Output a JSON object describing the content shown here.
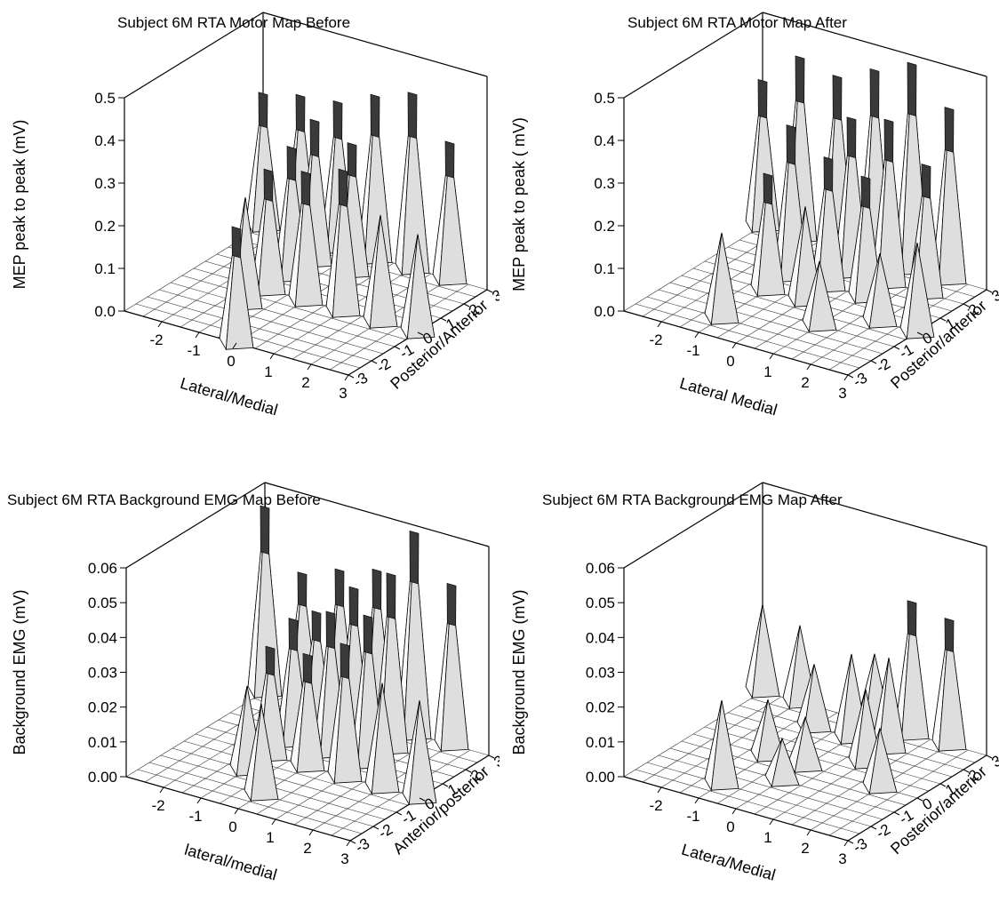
{
  "chart_data": [
    {
      "type": "surface3d",
      "title": "Subject  6M RTA Motor Map Before",
      "xlabel": "Lateral/Medial",
      "ylabel": "Posterior/Anterior",
      "zlabel": "MEP peak to peak (mV)",
      "x_ticks": [
        "-2",
        "-1",
        "0",
        "1",
        "2",
        "3"
      ],
      "y_ticks": [
        "-3",
        "-2",
        "-1",
        "0",
        "1",
        "2",
        "3"
      ],
      "z_ticks": [
        "0.0",
        "0.1",
        "0.2",
        "0.3",
        "0.4",
        "0.5"
      ],
      "zlim": [
        0,
        0.5
      ],
      "grid": "-3 to 3 on both horizontal axes",
      "peaks": [
        {
          "x": -3,
          "y": 3,
          "z": 0.31
        },
        {
          "x": -2,
          "y": 3,
          "z": 0.33
        },
        {
          "x": -1,
          "y": 3,
          "z": 0.34
        },
        {
          "x": 0,
          "y": 3,
          "z": 0.38
        },
        {
          "x": 1,
          "y": 3,
          "z": 0.41
        },
        {
          "x": 2,
          "y": 3,
          "z": 0.32
        },
        {
          "x": -1,
          "y": 2,
          "z": 0.33
        },
        {
          "x": 0,
          "y": 2,
          "z": 0.3
        },
        {
          "x": -1,
          "y": 1,
          "z": 0.3
        },
        {
          "x": -1,
          "y": 0,
          "z": 0.28
        },
        {
          "x": 0,
          "y": 0,
          "z": 0.3
        },
        {
          "x": 1,
          "y": 0,
          "z": 0.33
        },
        {
          "x": 2,
          "y": 0,
          "z": 0.25
        },
        {
          "x": 3,
          "y": 0,
          "z": 0.23
        },
        {
          "x": -1,
          "y": -1,
          "z": 0.25
        },
        {
          "x": 0,
          "y": -3,
          "z": 0.27
        }
      ]
    },
    {
      "type": "surface3d",
      "title": "Subject  6M RTA Motor Map After",
      "xlabel": "Lateral Medial",
      "ylabel": "Posterior/anterior",
      "zlabel": "MEP peak to peak ( mV)",
      "x_ticks": [
        "-2",
        "-1",
        "0",
        "1",
        "2",
        "3"
      ],
      "y_ticks": [
        "-3",
        "-2",
        "-1",
        "0",
        "1",
        "2",
        "3"
      ],
      "z_ticks": [
        "0.0",
        "0.1",
        "0.2",
        "0.3",
        "0.4",
        "0.5"
      ],
      "zlim": [
        0,
        0.5
      ],
      "grid": "-3 to 3 on both horizontal axes",
      "peaks": [
        {
          "x": -3,
          "y": 3,
          "z": 0.34
        },
        {
          "x": -2,
          "y": 3,
          "z": 0.42
        },
        {
          "x": -1,
          "y": 3,
          "z": 0.4
        },
        {
          "x": 0,
          "y": 3,
          "z": 0.44
        },
        {
          "x": 1,
          "y": 3,
          "z": 0.48
        },
        {
          "x": 2,
          "y": 3,
          "z": 0.4
        },
        {
          "x": 0,
          "y": 2,
          "z": 0.36
        },
        {
          "x": 1,
          "y": 2,
          "z": 0.38
        },
        {
          "x": 2,
          "y": 2,
          "z": 0.3
        },
        {
          "x": -1,
          "y": 1,
          "z": 0.35
        },
        {
          "x": 0,
          "y": 1,
          "z": 0.3
        },
        {
          "x": 1,
          "y": 1,
          "z": 0.28
        },
        {
          "x": -1,
          "y": 0,
          "z": 0.27
        },
        {
          "x": 0,
          "y": 0,
          "z": 0.22
        },
        {
          "x": 2,
          "y": 0,
          "z": 0.16
        },
        {
          "x": 3,
          "y": 0,
          "z": 0.21
        },
        {
          "x": 1,
          "y": -1,
          "z": 0.15
        },
        {
          "x": -1,
          "y": -2,
          "z": 0.2
        }
      ]
    },
    {
      "type": "surface3d",
      "title": "Subject 6M RTA Background EMG Map Before",
      "xlabel": "lateral/medial",
      "ylabel": "Anterior/posterior",
      "zlabel": "Background EMG (mV)",
      "x_ticks": [
        "-2",
        "-1",
        "0",
        "1",
        "2",
        "3"
      ],
      "y_ticks": [
        "-3",
        "-2",
        "-1",
        "0",
        "1",
        "2",
        "3"
      ],
      "z_ticks": [
        "0.00",
        "0.01",
        "0.02",
        "0.03",
        "0.04",
        "0.05",
        "0.06"
      ],
      "zlim": [
        0,
        0.06
      ],
      "grid": "-3 to 3 on both horizontal axes",
      "peaks": [
        {
          "x": -3,
          "y": 3,
          "z": 0.053
        },
        {
          "x": -2,
          "y": 3,
          "z": 0.037
        },
        {
          "x": -1,
          "y": 3,
          "z": 0.041
        },
        {
          "x": 0,
          "y": 3,
          "z": 0.044
        },
        {
          "x": 1,
          "y": 3,
          "z": 0.058
        },
        {
          "x": 1,
          "y": 2,
          "z": 0.05
        },
        {
          "x": 2,
          "y": 3,
          "z": 0.046
        },
        {
          "x": -1,
          "y": 2,
          "z": 0.033
        },
        {
          "x": 0,
          "y": 2,
          "z": 0.043
        },
        {
          "x": -1,
          "y": 1,
          "z": 0.035
        },
        {
          "x": 0,
          "y": 1,
          "z": 0.04
        },
        {
          "x": 1,
          "y": 1,
          "z": 0.042
        },
        {
          "x": -1,
          "y": 0,
          "z": 0.031
        },
        {
          "x": 0,
          "y": 0,
          "z": 0.032
        },
        {
          "x": 1,
          "y": 0,
          "z": 0.038
        },
        {
          "x": 2,
          "y": 0,
          "z": 0.03
        },
        {
          "x": 3,
          "y": 0,
          "z": 0.028
        },
        {
          "x": 0,
          "y": -2,
          "z": 0.026
        },
        {
          "x": -1,
          "y": -1,
          "z": 0.024
        }
      ]
    },
    {
      "type": "surface3d",
      "title": "Subject 6M RTA Background EMG Map After",
      "xlabel": "Latera/Medial",
      "ylabel": "Posterior/anterior",
      "zlabel": "Background EMG (mV)",
      "x_ticks": [
        "-2",
        "-1",
        "0",
        "1",
        "2",
        "3"
      ],
      "y_ticks": [
        "-3",
        "-2",
        "-1",
        "0",
        "1",
        "2",
        "3"
      ],
      "z_ticks": [
        "0.00",
        "0.01",
        "0.02",
        "0.03",
        "0.04",
        "0.05",
        "0.06"
      ],
      "zlim": [
        0,
        0.06
      ],
      "grid": "-3 to 3 on both horizontal axes",
      "peaks": [
        {
          "x": -3,
          "y": 3,
          "z": 0.025
        },
        {
          "x": -2,
          "y": 3,
          "z": 0.022
        },
        {
          "x": 0,
          "y": 3,
          "z": 0.02
        },
        {
          "x": 1,
          "y": 3,
          "z": 0.038
        },
        {
          "x": 2,
          "y": 3,
          "z": 0.036
        },
        {
          "x": -1,
          "y": 2,
          "z": 0.018
        },
        {
          "x": 0,
          "y": 2,
          "z": 0.024
        },
        {
          "x": 1,
          "y": 2,
          "z": 0.026
        },
        {
          "x": 1,
          "y": 1,
          "z": 0.021
        },
        {
          "x": -1,
          "y": 0,
          "z": 0.016
        },
        {
          "x": 0,
          "y": 0,
          "z": 0.014
        },
        {
          "x": 2,
          "y": 0,
          "z": 0.017
        },
        {
          "x": 0,
          "y": -1,
          "z": 0.012
        },
        {
          "x": -1,
          "y": -2,
          "z": 0.024
        }
      ]
    }
  ]
}
